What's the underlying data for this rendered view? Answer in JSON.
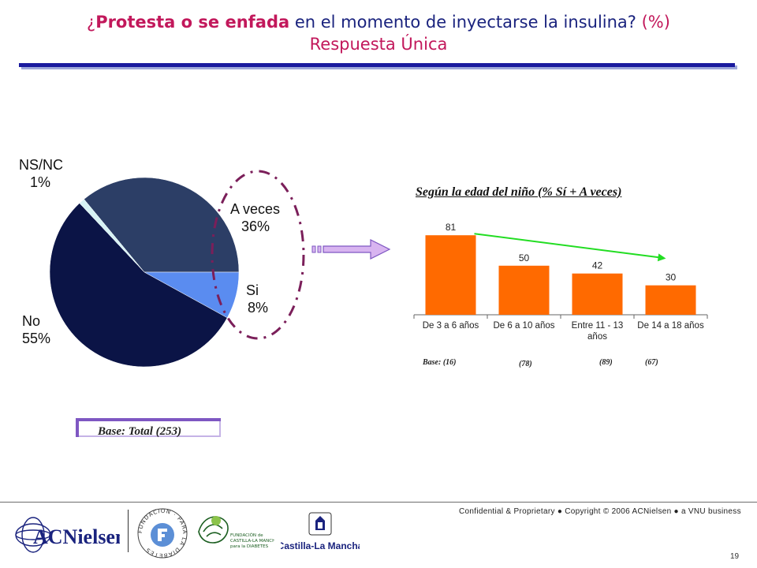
{
  "header": {
    "title_open": "¿",
    "title_bold": "Protesta o se enfada",
    "title_rest": " en el momento de inyectarse la insulina?",
    "title_pct": " (%)",
    "subtitle": "Respuesta Única"
  },
  "pie_labels": {
    "nsnc_name": "NS/NC",
    "nsnc_value": "1%",
    "aveces_name": "A veces",
    "aveces_value": "36%",
    "si_name": "Si",
    "si_value": "8%",
    "no_name": "No",
    "no_value": "55%"
  },
  "pie_colors": {
    "A veces": "#2c3e66",
    "Si": "#5a8cf0",
    "No": "#0b1446",
    "NS/NC": "#d6f2f4"
  },
  "bar_heading": "Según la edad del niño (% Sí + A veces)",
  "bases": [
    "Base: (16)",
    "(78)",
    "(89)",
    "(67)"
  ],
  "base_total": "Base: Total (253)",
  "footer": {
    "confidential": "Confidential & Proprietary ● Copyright © 2006 ACNielsen ● a VNU business",
    "page_number": "19",
    "logo_acn": "ACNielsen",
    "logo_fundacion_ring": "FUNDACION · PARA LA DIABETES",
    "logo_castilla_fund": "FUNDACIÓN de CASTILLA-LA MANCHA para la DIABETES",
    "logo_clm": "Castilla-La Mancha"
  },
  "chart_data": [
    {
      "type": "pie",
      "slices": [
        {
          "label": "A veces",
          "value": 36
        },
        {
          "label": "Si",
          "value": 8
        },
        {
          "label": "No",
          "value": 55
        },
        {
          "label": "NS/NC",
          "value": 1
        }
      ]
    },
    {
      "type": "bar",
      "title": "Según la edad del niño (% Sí + A veces)",
      "categories": [
        "De 3 a 6 años",
        "De 6 a 10 años",
        "Entre 11 - 13 años",
        "De 14 a 18 años"
      ],
      "values": [
        81,
        50,
        42,
        30
      ],
      "bar_color": "#ff6a00",
      "trend_color": "#22dd22"
    }
  ]
}
